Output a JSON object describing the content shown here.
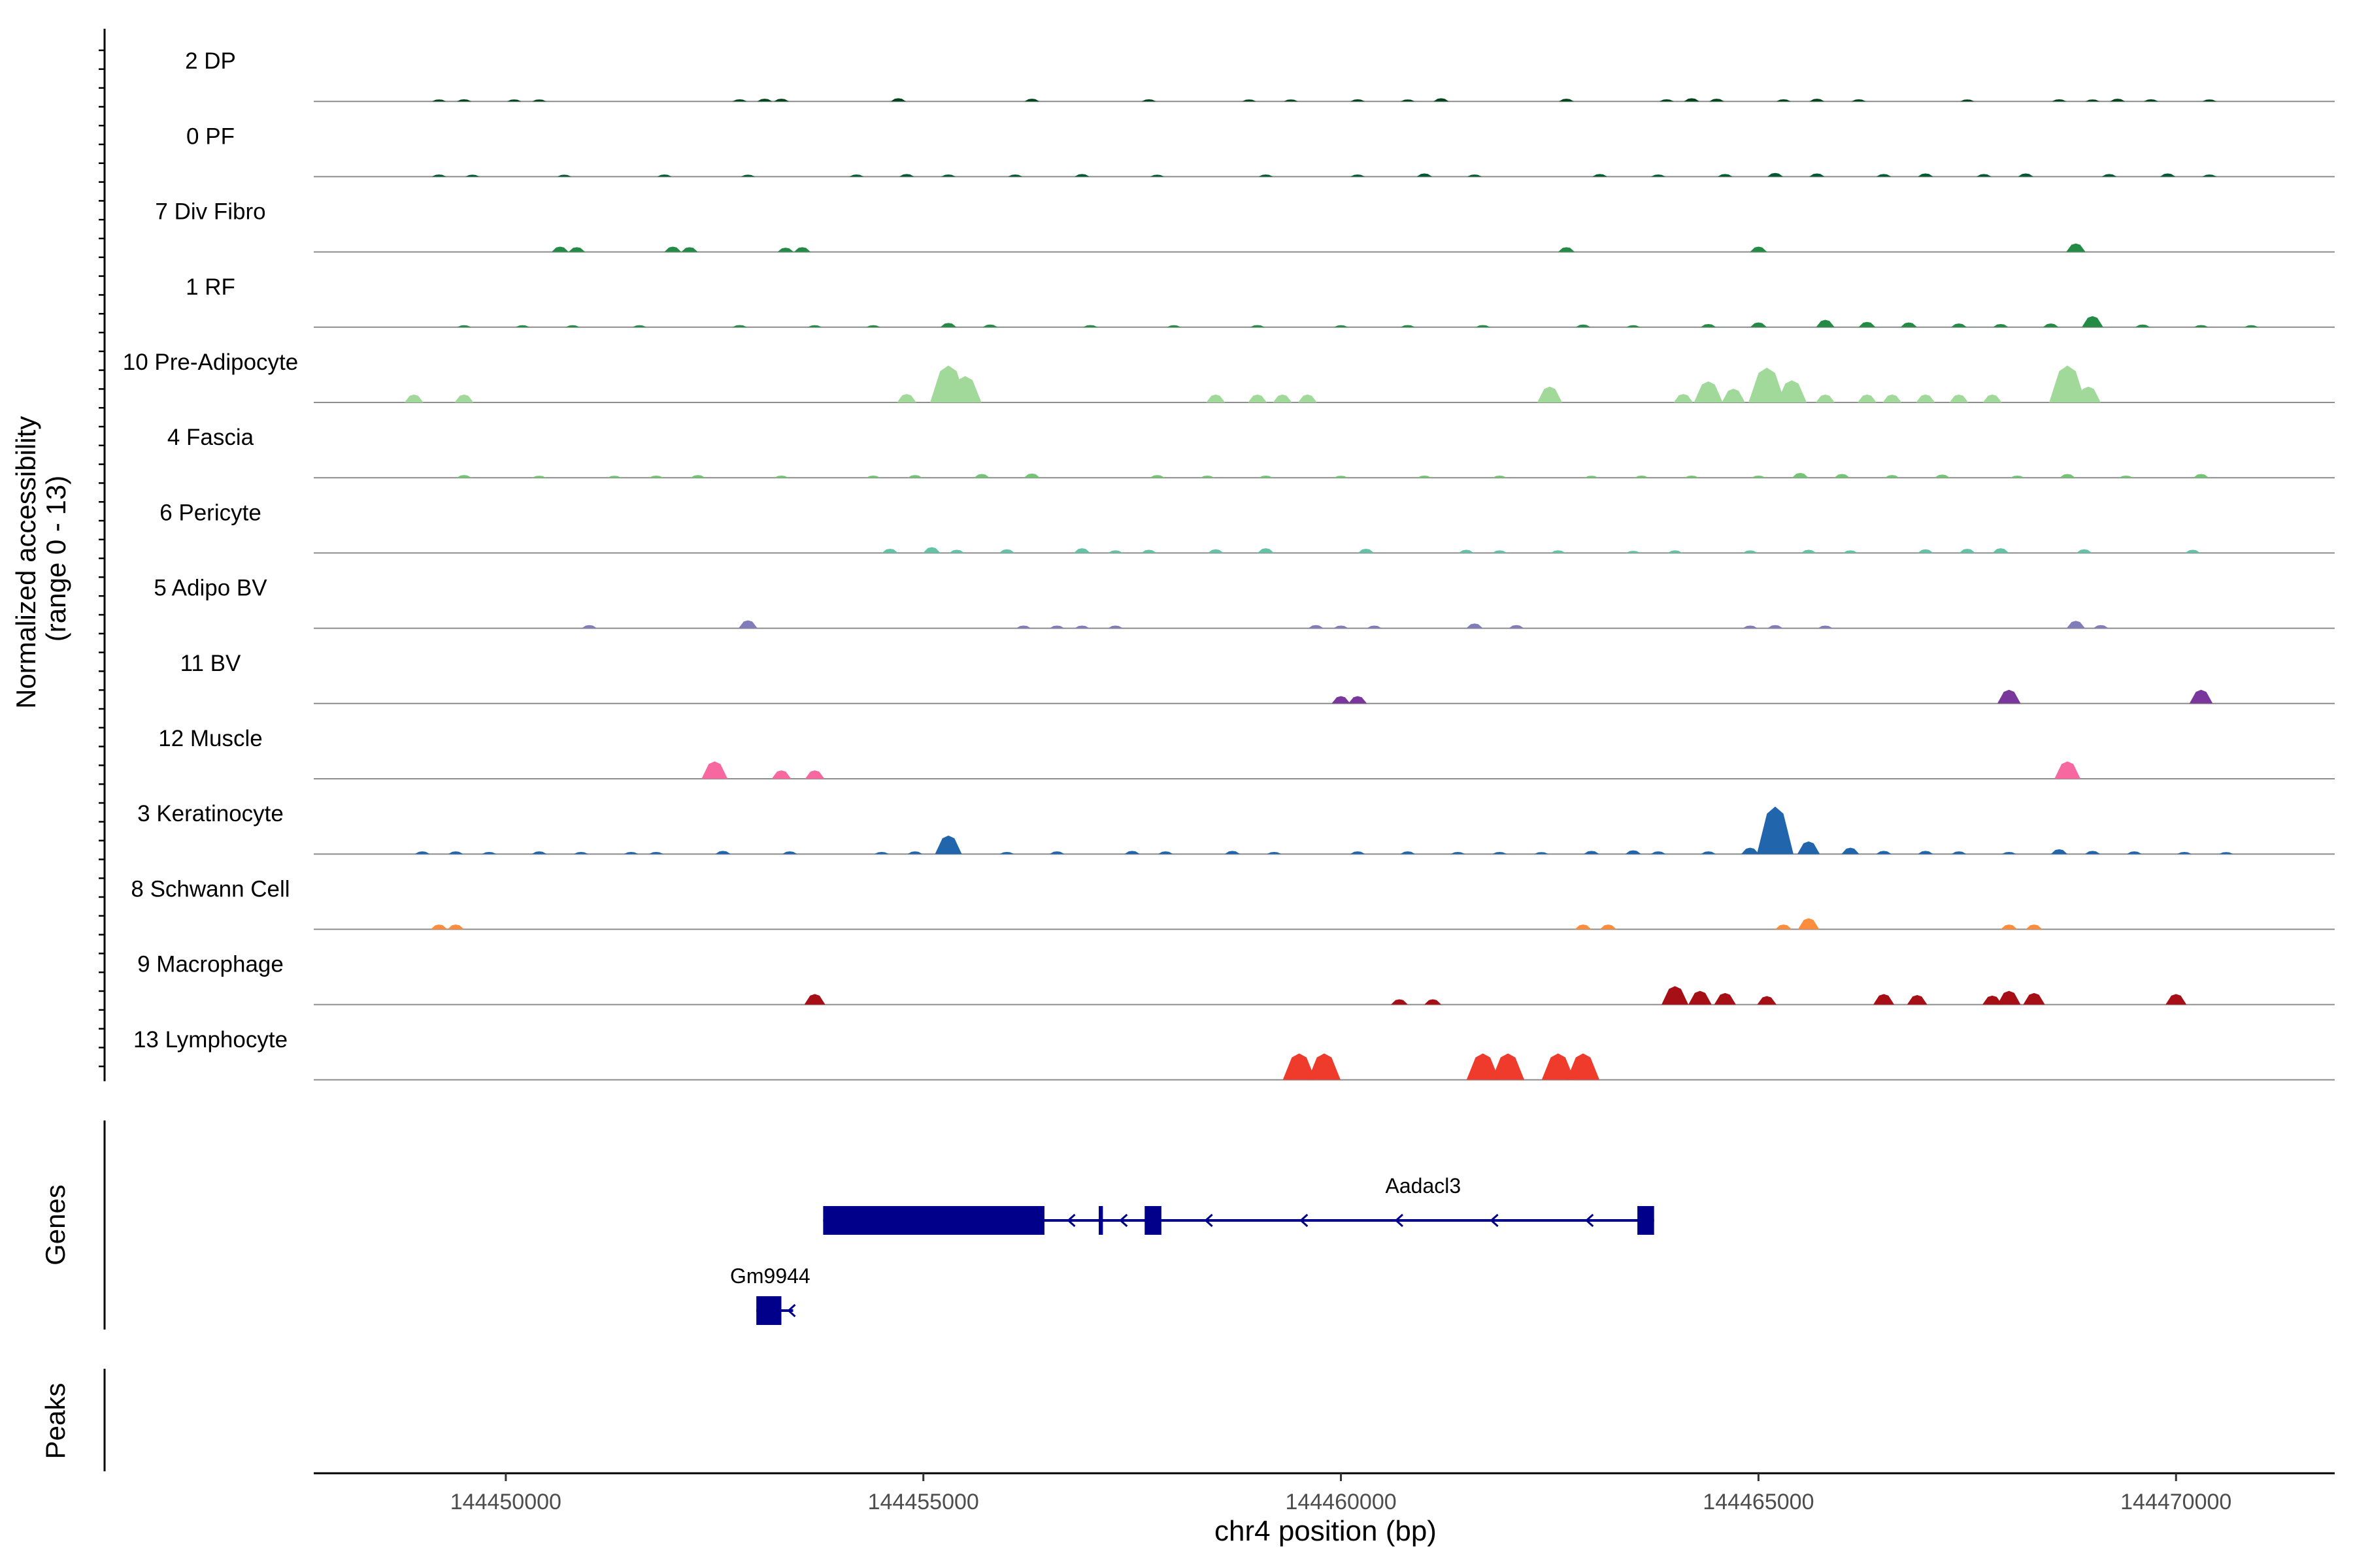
{
  "chart_data": {
    "type": "area",
    "title": "",
    "xlabel": "chr4 position (bp)",
    "ylabel": "Normalized accessibility\n(range 0 - 13)",
    "y_range_label": "(range 0 - 13)",
    "xlim": [
      144447700,
      144471900
    ],
    "ylim": [
      0,
      13
    ],
    "x_ticks": [
      144450000,
      144455000,
      144460000,
      144465000,
      144470000
    ],
    "x_tick_labels": [
      "144450000",
      "144455000",
      "144460000",
      "144465000",
      "144470000"
    ],
    "gene_panel_title": "Genes",
    "peaks_panel_title": "Peaks",
    "tracks": [
      {
        "name": "2 DP",
        "color": "#00441b",
        "peaks": [
          [
            144449200,
            0.3
          ],
          [
            144449500,
            0.4
          ],
          [
            144450100,
            0.3
          ],
          [
            144450400,
            0.3
          ],
          [
            144452800,
            0.4
          ],
          [
            144453100,
            0.5
          ],
          [
            144453300,
            0.5
          ],
          [
            144454700,
            0.6
          ],
          [
            144456300,
            0.5
          ],
          [
            144457700,
            0.4
          ],
          [
            144458900,
            0.3
          ],
          [
            144459400,
            0.3
          ],
          [
            144460200,
            0.4
          ],
          [
            144460800,
            0.3
          ],
          [
            144461200,
            0.6
          ],
          [
            144462700,
            0.5
          ],
          [
            144463900,
            0.4
          ],
          [
            144464200,
            0.6
          ],
          [
            144464500,
            0.5
          ],
          [
            144465300,
            0.4
          ],
          [
            144465700,
            0.5
          ],
          [
            144466200,
            0.4
          ],
          [
            144467500,
            0.3
          ],
          [
            144468600,
            0.4
          ],
          [
            144469000,
            0.3
          ],
          [
            144469300,
            0.5
          ],
          [
            144469700,
            0.4
          ],
          [
            144470400,
            0.3
          ]
        ]
      },
      {
        "name": "0 PF",
        "color": "#005a32",
        "peaks": [
          [
            144449200,
            0.4
          ],
          [
            144449600,
            0.3
          ],
          [
            144450700,
            0.3
          ],
          [
            144451900,
            0.4
          ],
          [
            144452900,
            0.3
          ],
          [
            144454200,
            0.4
          ],
          [
            144454800,
            0.5
          ],
          [
            144455300,
            0.4
          ],
          [
            144456100,
            0.4
          ],
          [
            144456900,
            0.5
          ],
          [
            144457800,
            0.3
          ],
          [
            144459100,
            0.4
          ],
          [
            144460200,
            0.4
          ],
          [
            144461000,
            0.6
          ],
          [
            144461600,
            0.4
          ],
          [
            144463100,
            0.5
          ],
          [
            144463800,
            0.4
          ],
          [
            144464600,
            0.5
          ],
          [
            144465200,
            0.7
          ],
          [
            144465700,
            0.6
          ],
          [
            144466500,
            0.5
          ],
          [
            144467000,
            0.6
          ],
          [
            144467700,
            0.5
          ],
          [
            144468200,
            0.6
          ],
          [
            144469200,
            0.5
          ],
          [
            144469900,
            0.6
          ],
          [
            144470400,
            0.4
          ]
        ]
      },
      {
        "name": "7 Div Fibro",
        "color": "#238b45",
        "peaks": [
          [
            144450650,
            1.0
          ],
          [
            144450850,
            0.9
          ],
          [
            144452000,
            1.0
          ],
          [
            144452200,
            0.9
          ],
          [
            144453350,
            0.8
          ],
          [
            144453550,
            0.9
          ],
          [
            144462700,
            0.9
          ],
          [
            144465000,
            1.0
          ],
          [
            144468800,
            1.6
          ]
        ]
      },
      {
        "name": "1 RF",
        "color": "#238b45",
        "peaks": [
          [
            144449500,
            0.3
          ],
          [
            144450200,
            0.3
          ],
          [
            144450800,
            0.3
          ],
          [
            144451600,
            0.3
          ],
          [
            144452800,
            0.4
          ],
          [
            144453700,
            0.3
          ],
          [
            144454400,
            0.3
          ],
          [
            144455300,
            0.8
          ],
          [
            144455800,
            0.5
          ],
          [
            144457000,
            0.4
          ],
          [
            144458000,
            0.3
          ],
          [
            144459000,
            0.4
          ],
          [
            144460000,
            0.3
          ],
          [
            144460800,
            0.4
          ],
          [
            144461700,
            0.4
          ],
          [
            144462900,
            0.5
          ],
          [
            144463500,
            0.3
          ],
          [
            144464400,
            0.6
          ],
          [
            144465000,
            0.9
          ],
          [
            144465800,
            1.4
          ],
          [
            144466300,
            1.0
          ],
          [
            144466800,
            0.9
          ],
          [
            144467400,
            0.7
          ],
          [
            144467900,
            0.6
          ],
          [
            144468500,
            0.7
          ],
          [
            144469000,
            2.1
          ],
          [
            144469600,
            0.5
          ],
          [
            144470300,
            0.4
          ],
          [
            144470900,
            0.3
          ]
        ]
      },
      {
        "name": "10 Pre-Adipocyte",
        "color": "#a1d99b",
        "peaks": [
          [
            144448900,
            1.5
          ],
          [
            144449500,
            1.5
          ],
          [
            144454800,
            1.6
          ],
          [
            144455300,
            7.0
          ],
          [
            144455500,
            5.0
          ],
          [
            144458500,
            1.5
          ],
          [
            144459000,
            1.5
          ],
          [
            144459300,
            1.5
          ],
          [
            144459600,
            1.5
          ],
          [
            144462500,
            3.0
          ],
          [
            144464100,
            1.6
          ],
          [
            144464400,
            4.0
          ],
          [
            144464700,
            2.6
          ],
          [
            144465100,
            6.6
          ],
          [
            144465400,
            4.2
          ],
          [
            144465800,
            1.5
          ],
          [
            144466300,
            1.5
          ],
          [
            144466600,
            1.5
          ],
          [
            144467000,
            1.5
          ],
          [
            144467400,
            1.5
          ],
          [
            144467800,
            1.5
          ],
          [
            144468700,
            7.0
          ],
          [
            144468950,
            3.0
          ]
        ]
      },
      {
        "name": "4 Fascia",
        "color": "#74c476",
        "peaks": [
          [
            144449500,
            0.5
          ],
          [
            144450400,
            0.3
          ],
          [
            144451300,
            0.3
          ],
          [
            144451800,
            0.4
          ],
          [
            144452300,
            0.5
          ],
          [
            144453300,
            0.4
          ],
          [
            144454400,
            0.4
          ],
          [
            144454900,
            0.5
          ],
          [
            144455700,
            0.7
          ],
          [
            144456300,
            0.8
          ],
          [
            144457800,
            0.5
          ],
          [
            144458400,
            0.4
          ],
          [
            144459100,
            0.4
          ],
          [
            144460000,
            0.3
          ],
          [
            144461000,
            0.4
          ],
          [
            144461900,
            0.4
          ],
          [
            144463000,
            0.3
          ],
          [
            144463600,
            0.4
          ],
          [
            144464200,
            0.4
          ],
          [
            144465000,
            0.4
          ],
          [
            144465500,
            0.9
          ],
          [
            144466000,
            0.7
          ],
          [
            144466600,
            0.5
          ],
          [
            144467200,
            0.6
          ],
          [
            144468100,
            0.4
          ],
          [
            144468700,
            0.7
          ],
          [
            144469400,
            0.4
          ],
          [
            144470300,
            0.7
          ]
        ]
      },
      {
        "name": "6 Pericyte",
        "color": "#66c2a4",
        "peaks": [
          [
            144454600,
            0.8
          ],
          [
            144455100,
            1.1
          ],
          [
            144455400,
            0.6
          ],
          [
            144456000,
            0.7
          ],
          [
            144456900,
            0.9
          ],
          [
            144457300,
            0.5
          ],
          [
            144457700,
            0.6
          ],
          [
            144458500,
            0.7
          ],
          [
            144459100,
            0.9
          ],
          [
            144460300,
            0.8
          ],
          [
            144461500,
            0.6
          ],
          [
            144461900,
            0.5
          ],
          [
            144462600,
            0.5
          ],
          [
            144463500,
            0.4
          ],
          [
            144464000,
            0.5
          ],
          [
            144464900,
            0.5
          ],
          [
            144465600,
            0.6
          ],
          [
            144466100,
            0.5
          ],
          [
            144467000,
            0.7
          ],
          [
            144467500,
            0.8
          ],
          [
            144467900,
            0.9
          ],
          [
            144468900,
            0.7
          ],
          [
            144470200,
            0.6
          ]
        ]
      },
      {
        "name": "5 Adipo BV",
        "color": "#807dba",
        "peaks": [
          [
            144451000,
            0.6
          ],
          [
            144452900,
            1.5
          ],
          [
            144456200,
            0.5
          ],
          [
            144456600,
            0.5
          ],
          [
            144456900,
            0.5
          ],
          [
            144457300,
            0.5
          ],
          [
            144459700,
            0.6
          ],
          [
            144460000,
            0.5
          ],
          [
            144460400,
            0.5
          ],
          [
            144461600,
            0.9
          ],
          [
            144462100,
            0.6
          ],
          [
            144464900,
            0.5
          ],
          [
            144465200,
            0.6
          ],
          [
            144465800,
            0.5
          ],
          [
            144468800,
            1.4
          ],
          [
            144469100,
            0.6
          ]
        ]
      },
      {
        "name": "11 BV",
        "color": "#7a379b",
        "peaks": [
          [
            144460000,
            1.4
          ],
          [
            144460200,
            1.4
          ],
          [
            144468000,
            2.6
          ],
          [
            144470300,
            2.6
          ]
        ]
      },
      {
        "name": "12 Muscle",
        "color": "#f768a1",
        "peaks": [
          [
            144452500,
            3.3
          ],
          [
            144453300,
            1.6
          ],
          [
            144453700,
            1.6
          ],
          [
            144468700,
            3.3
          ]
        ]
      },
      {
        "name": "3 Keratinocyte",
        "color": "#2166ac",
        "peaks": [
          [
            144449000,
            0.5
          ],
          [
            144449400,
            0.5
          ],
          [
            144449800,
            0.4
          ],
          [
            144450400,
            0.5
          ],
          [
            144450900,
            0.4
          ],
          [
            144451500,
            0.4
          ],
          [
            144451800,
            0.4
          ],
          [
            144452600,
            0.6
          ],
          [
            144453400,
            0.5
          ],
          [
            144454500,
            0.4
          ],
          [
            144454900,
            0.5
          ],
          [
            144455300,
            3.5
          ],
          [
            144456000,
            0.4
          ],
          [
            144456600,
            0.5
          ],
          [
            144457500,
            0.6
          ],
          [
            144457900,
            0.5
          ],
          [
            144458700,
            0.6
          ],
          [
            144459200,
            0.4
          ],
          [
            144460200,
            0.5
          ],
          [
            144460800,
            0.5
          ],
          [
            144461400,
            0.4
          ],
          [
            144461900,
            0.4
          ],
          [
            144462400,
            0.3
          ],
          [
            144463000,
            0.6
          ],
          [
            144463500,
            0.7
          ],
          [
            144463800,
            0.5
          ],
          [
            144464400,
            0.5
          ],
          [
            144464900,
            1.2
          ],
          [
            144465200,
            9.0
          ],
          [
            144465600,
            2.4
          ],
          [
            144466100,
            1.2
          ],
          [
            144466500,
            0.6
          ],
          [
            144467000,
            0.6
          ],
          [
            144467400,
            0.5
          ],
          [
            144468000,
            0.4
          ],
          [
            144468600,
            0.9
          ],
          [
            144469000,
            0.6
          ],
          [
            144469500,
            0.5
          ],
          [
            144470100,
            0.4
          ],
          [
            144470600,
            0.3
          ]
        ]
      },
      {
        "name": "8 Schwann Cell",
        "color": "#fd8d3c",
        "peaks": [
          [
            144449200,
            0.9
          ],
          [
            144449400,
            0.9
          ],
          [
            144462900,
            0.9
          ],
          [
            144463200,
            0.9
          ],
          [
            144465300,
            0.9
          ],
          [
            144465600,
            2.1
          ],
          [
            144468000,
            0.9
          ],
          [
            144468300,
            0.9
          ]
        ]
      },
      {
        "name": "9 Macrophage",
        "color": "#a50f15",
        "peaks": [
          [
            144453700,
            2.0
          ],
          [
            144460700,
            1.0
          ],
          [
            144461100,
            1.0
          ],
          [
            144464000,
            3.5
          ],
          [
            144464300,
            2.6
          ],
          [
            144464600,
            2.2
          ],
          [
            144465100,
            1.6
          ],
          [
            144466500,
            2.0
          ],
          [
            144466900,
            1.8
          ],
          [
            144467800,
            1.7
          ],
          [
            144468000,
            2.6
          ],
          [
            144468300,
            2.2
          ],
          [
            144470000,
            2.0
          ]
        ]
      },
      {
        "name": "13 Lymphocyte",
        "color": "#ef3b2c",
        "peaks": [
          [
            144459500,
            5.0
          ],
          [
            144459800,
            5.0
          ],
          [
            144461700,
            5.0
          ],
          [
            144462000,
            5.0
          ],
          [
            144462600,
            5.0
          ],
          [
            144462900,
            5.0
          ]
        ]
      }
    ],
    "genes": [
      {
        "name": "Aadacl3",
        "start": 144453800,
        "end": 144463750,
        "strand": "-",
        "exons": [
          [
            144453800,
            144456450
          ],
          [
            144457100,
            144457150
          ],
          [
            144457650,
            144457850
          ],
          [
            144463550,
            144463750
          ]
        ]
      },
      {
        "name": "Gm9944",
        "start": 144453000,
        "end": 144453300,
        "strand": "-",
        "exons": [
          [
            144453000,
            144453300
          ]
        ]
      }
    ]
  }
}
